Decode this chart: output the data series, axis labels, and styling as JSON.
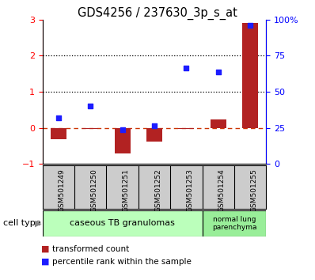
{
  "title": "GDS4256 / 237630_3p_s_at",
  "samples": [
    "GSM501249",
    "GSM501250",
    "GSM501251",
    "GSM501252",
    "GSM501253",
    "GSM501254",
    "GSM501255"
  ],
  "transformed_count": [
    -0.32,
    -0.04,
    -0.72,
    -0.38,
    -0.03,
    0.22,
    2.9
  ],
  "percentile_rank_left": [
    0.28,
    0.6,
    -0.06,
    0.06,
    1.65,
    1.55,
    2.85
  ],
  "ylim_left": [
    -1,
    3
  ],
  "ylim_right": [
    0,
    100
  ],
  "yticks_left": [
    -1,
    0,
    1,
    2,
    3
  ],
  "yticks_right": [
    0,
    25,
    50,
    75,
    100
  ],
  "bar_color": "#b22222",
  "dot_color": "#1c1cff",
  "dashed_line_color": "#cc3300",
  "group1_label": "caseous TB granulomas",
  "group1_color": "#bbffbb",
  "group1_count": 5,
  "group2_label": "normal lung\nparenchyma",
  "group2_color": "#99ee99",
  "group2_count": 2,
  "legend_red": "transformed count",
  "legend_blue": "percentile rank within the sample",
  "cell_type_label": "cell type",
  "bg_color": "#ffffff",
  "sample_bg_color": "#cccccc"
}
